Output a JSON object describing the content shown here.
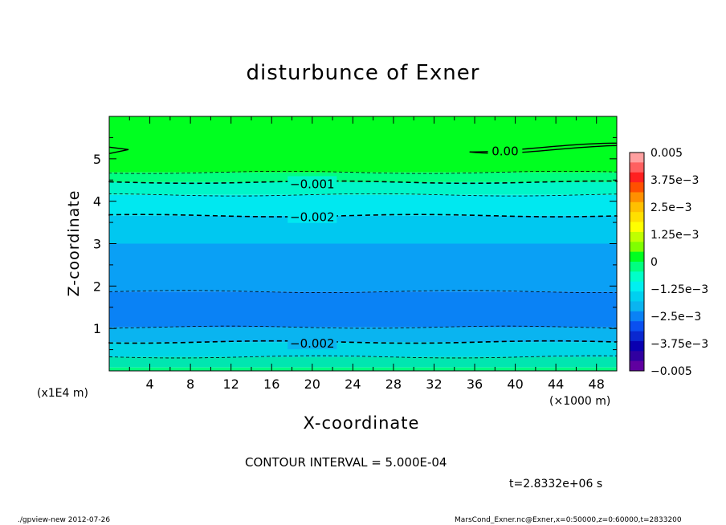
{
  "chart_data": {
    "type": "contour",
    "title": "disturbunce of Exner",
    "xlabel": "X-coordinate",
    "ylabel": "Z-coordinate",
    "x_unit": "(×1000 m)",
    "y_unit": "(x1E4 m)",
    "xlim": [
      0,
      50
    ],
    "ylim": [
      0,
      6
    ],
    "x_ticks": [
      "4",
      "8",
      "12",
      "16",
      "20",
      "24",
      "28",
      "32",
      "36",
      "40",
      "44",
      "48"
    ],
    "x_tick_values": [
      4,
      8,
      12,
      16,
      20,
      24,
      28,
      32,
      36,
      40,
      44,
      48
    ],
    "y_ticks": [
      "1",
      "2",
      "3",
      "4",
      "5"
    ],
    "y_tick_values": [
      1,
      2,
      3,
      4,
      5
    ],
    "contour_interval": "CONTOUR INTERVAL = 5.000E-04",
    "contour_labels": [
      {
        "text": "0.00",
        "x": 39,
        "z": 5.2
      },
      {
        "text": "−0.001",
        "x": 20,
        "z": 4.42
      },
      {
        "text": "−0.002",
        "x": 20,
        "z": 3.64
      },
      {
        "text": "−0.002",
        "x": 20,
        "z": 0.66
      }
    ],
    "filled_bands": [
      {
        "z0": 0.0,
        "z1": 0.08,
        "color": "#00ff80"
      },
      {
        "z0": 0.08,
        "z1": 0.33,
        "color": "#00e6b0"
      },
      {
        "z0": 0.33,
        "z1": 0.68,
        "color": "#00d4e6"
      },
      {
        "z0": 0.68,
        "z1": 1.03,
        "color": "#0ab4f0"
      },
      {
        "z0": 1.03,
        "z1": 1.87,
        "color": "#0a82f5"
      },
      {
        "z0": 1.87,
        "z1": 3.0,
        "color": "#0aa0f5"
      },
      {
        "z0": 3.0,
        "z1": 3.66,
        "color": "#00c8f0"
      },
      {
        "z0": 3.66,
        "z1": 4.15,
        "color": "#00e8f0"
      },
      {
        "z0": 4.15,
        "z1": 4.45,
        "color": "#00f5c8"
      },
      {
        "z0": 4.45,
        "z1": 4.68,
        "color": "#00ff80"
      },
      {
        "z0": 4.68,
        "z1": 6.0,
        "color": "#00ff20"
      }
    ],
    "contour_lines": [
      {
        "z": 0.33,
        "style": "thin-dashed"
      },
      {
        "z": 0.68,
        "style": "thick-dashed"
      },
      {
        "z": 1.03,
        "style": "thin-dashed"
      },
      {
        "z": 1.87,
        "style": "thin-dashed"
      },
      {
        "z": 3.66,
        "style": "thick-dashed"
      },
      {
        "z": 4.15,
        "style": "thin-dashed"
      },
      {
        "z": 4.45,
        "style": "thick-dashed"
      },
      {
        "z": 4.68,
        "style": "thin-dashed"
      }
    ],
    "colorbar": {
      "labels": [
        "0.005",
        "3.75e−3",
        "2.5e−3",
        "1.25e−3",
        "0",
        "−1.25e−3",
        "−2.5e−3",
        "−3.75e−3",
        "−0.005"
      ],
      "label_values": [
        0.005,
        0.00375,
        0.0025,
        0.00125,
        0,
        -0.00125,
        -0.0025,
        -0.00375,
        -0.005
      ],
      "range": [
        -0.005,
        0.005
      ],
      "colors_top_to_bottom": [
        "#ffa0a0",
        "#ff6060",
        "#ff2020",
        "#ff5000",
        "#ff9000",
        "#ffc000",
        "#ffe000",
        "#ffff00",
        "#c0ff00",
        "#80ff00",
        "#00ff20",
        "#00ff80",
        "#00ffc8",
        "#00f0f0",
        "#00d0f0",
        "#0ab4f0",
        "#0a82f5",
        "#0a50f0",
        "#0a28d0",
        "#0a00b0",
        "#3000a0",
        "#6000a0"
      ]
    }
  },
  "time_label": "t=2.8332e+06 s",
  "footer_left": "./gpview-new  2012-07-26",
  "footer_right": "MarsCond_Exner.nc@Exner,x=0:50000,z=0:60000,t=2833200"
}
